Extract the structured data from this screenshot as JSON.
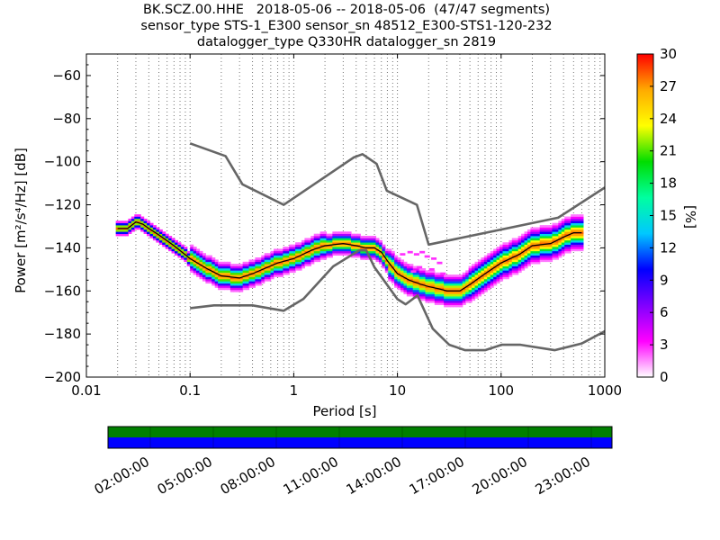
{
  "header": {
    "line1": "BK.SCZ.00.HHE   2018-05-06 -- 2018-05-06  (47/47 segments)",
    "line2": "sensor_type STS-1_E300 sensor_sn 48512_E300-STS1-120-232",
    "line3": "datalogger_type Q330HR datalogger_sn 2819"
  },
  "chart_data": [
    {
      "type": "heatmap",
      "name": "ppsd",
      "xlabel": "Period [s]",
      "ylabel": "Power [m²/s⁴/Hz] [dB]",
      "x_scale": "log",
      "xlim": [
        0.01,
        1000
      ],
      "ylim": [
        -200,
        -50
      ],
      "x_ticks": [
        0.01,
        0.1,
        1,
        10,
        100,
        1000
      ],
      "x_tick_labels": [
        "0.01",
        "0.1",
        "1",
        "10",
        "100",
        "1000"
      ],
      "y_ticks": [
        -200,
        -180,
        -160,
        -140,
        -120,
        -100,
        -80,
        -60
      ],
      "y_tick_labels": [
        "−200",
        "−180",
        "−160",
        "−140",
        "−120",
        "−100",
        "−80",
        "−60"
      ],
      "grid": "dotted vertical",
      "colorbar": {
        "label": "[%]",
        "range": [
          0,
          30
        ],
        "ticks": [
          0,
          3,
          6,
          9,
          12,
          15,
          18,
          21,
          24,
          27,
          30
        ],
        "colors": [
          "#ffffff",
          "#ff00ff",
          "#8000ff",
          "#0000ff",
          "#00c8ff",
          "#00ffa0",
          "#00dd00",
          "#ffff00",
          "#ffaa00",
          "#ff0000"
        ]
      },
      "noise_models": {
        "high": {
          "x": [
            0.1,
            0.22,
            0.32,
            0.8,
            3.8,
            4.6,
            6.3,
            7.9,
            15.4,
            20,
            354.8,
            1000
          ],
          "y": [
            -91.5,
            -97.4,
            -110.5,
            -120,
            -98,
            -96.5,
            -101,
            -113.5,
            -120,
            -138.5,
            -126,
            -112
          ]
        },
        "low": {
          "x": [
            0.1,
            0.17,
            0.4,
            0.8,
            1.24,
            2.4,
            4.3,
            5,
            6,
            10,
            12,
            15.6,
            21.9,
            31.6,
            45,
            70,
            101,
            154,
            328,
            600,
            1000
          ],
          "y": [
            -168,
            -166.7,
            -166.7,
            -169.2,
            -163.7,
            -148.6,
            -141.1,
            -141.1,
            -149,
            -163.8,
            -166.2,
            -162.1,
            -177.5,
            -185,
            -187.5,
            -187.5,
            -185,
            -185,
            -187.5,
            -184.4,
            -178.7
          ]
        }
      },
      "median": {
        "x": [
          0.02,
          0.025,
          0.03,
          0.035,
          0.04,
          0.05,
          0.07,
          0.1,
          0.15,
          0.2,
          0.3,
          0.4,
          0.5,
          0.7,
          1,
          1.5,
          2,
          3,
          4,
          5,
          6,
          7,
          8,
          10,
          13,
          17,
          20,
          25,
          30,
          40,
          50,
          70,
          100,
          150,
          200,
          300,
          400,
          500,
          600
        ],
        "y": [
          -131,
          -131,
          -128,
          -129,
          -131,
          -134,
          -139,
          -145,
          -150,
          -153,
          -154,
          -152,
          -150,
          -147,
          -145,
          -141,
          -139,
          -138,
          -139,
          -140,
          -140,
          -142,
          -146,
          -152,
          -155,
          -157,
          -158,
          -159,
          -160,
          -160,
          -157,
          -152,
          -147,
          -143,
          -139,
          -138,
          -135,
          -133,
          -133
        ]
      }
    },
    {
      "type": "timeline",
      "name": "data-availability",
      "x_tick_labels": [
        "02:00:00",
        "05:00:00",
        "08:00:00",
        "11:00:00",
        "14:00:00",
        "17:00:00",
        "20:00:00",
        "23:00:00"
      ],
      "rows": [
        "green",
        "blue"
      ],
      "colors": {
        "top": "#008000",
        "bottom": "#0000ff"
      }
    }
  ]
}
